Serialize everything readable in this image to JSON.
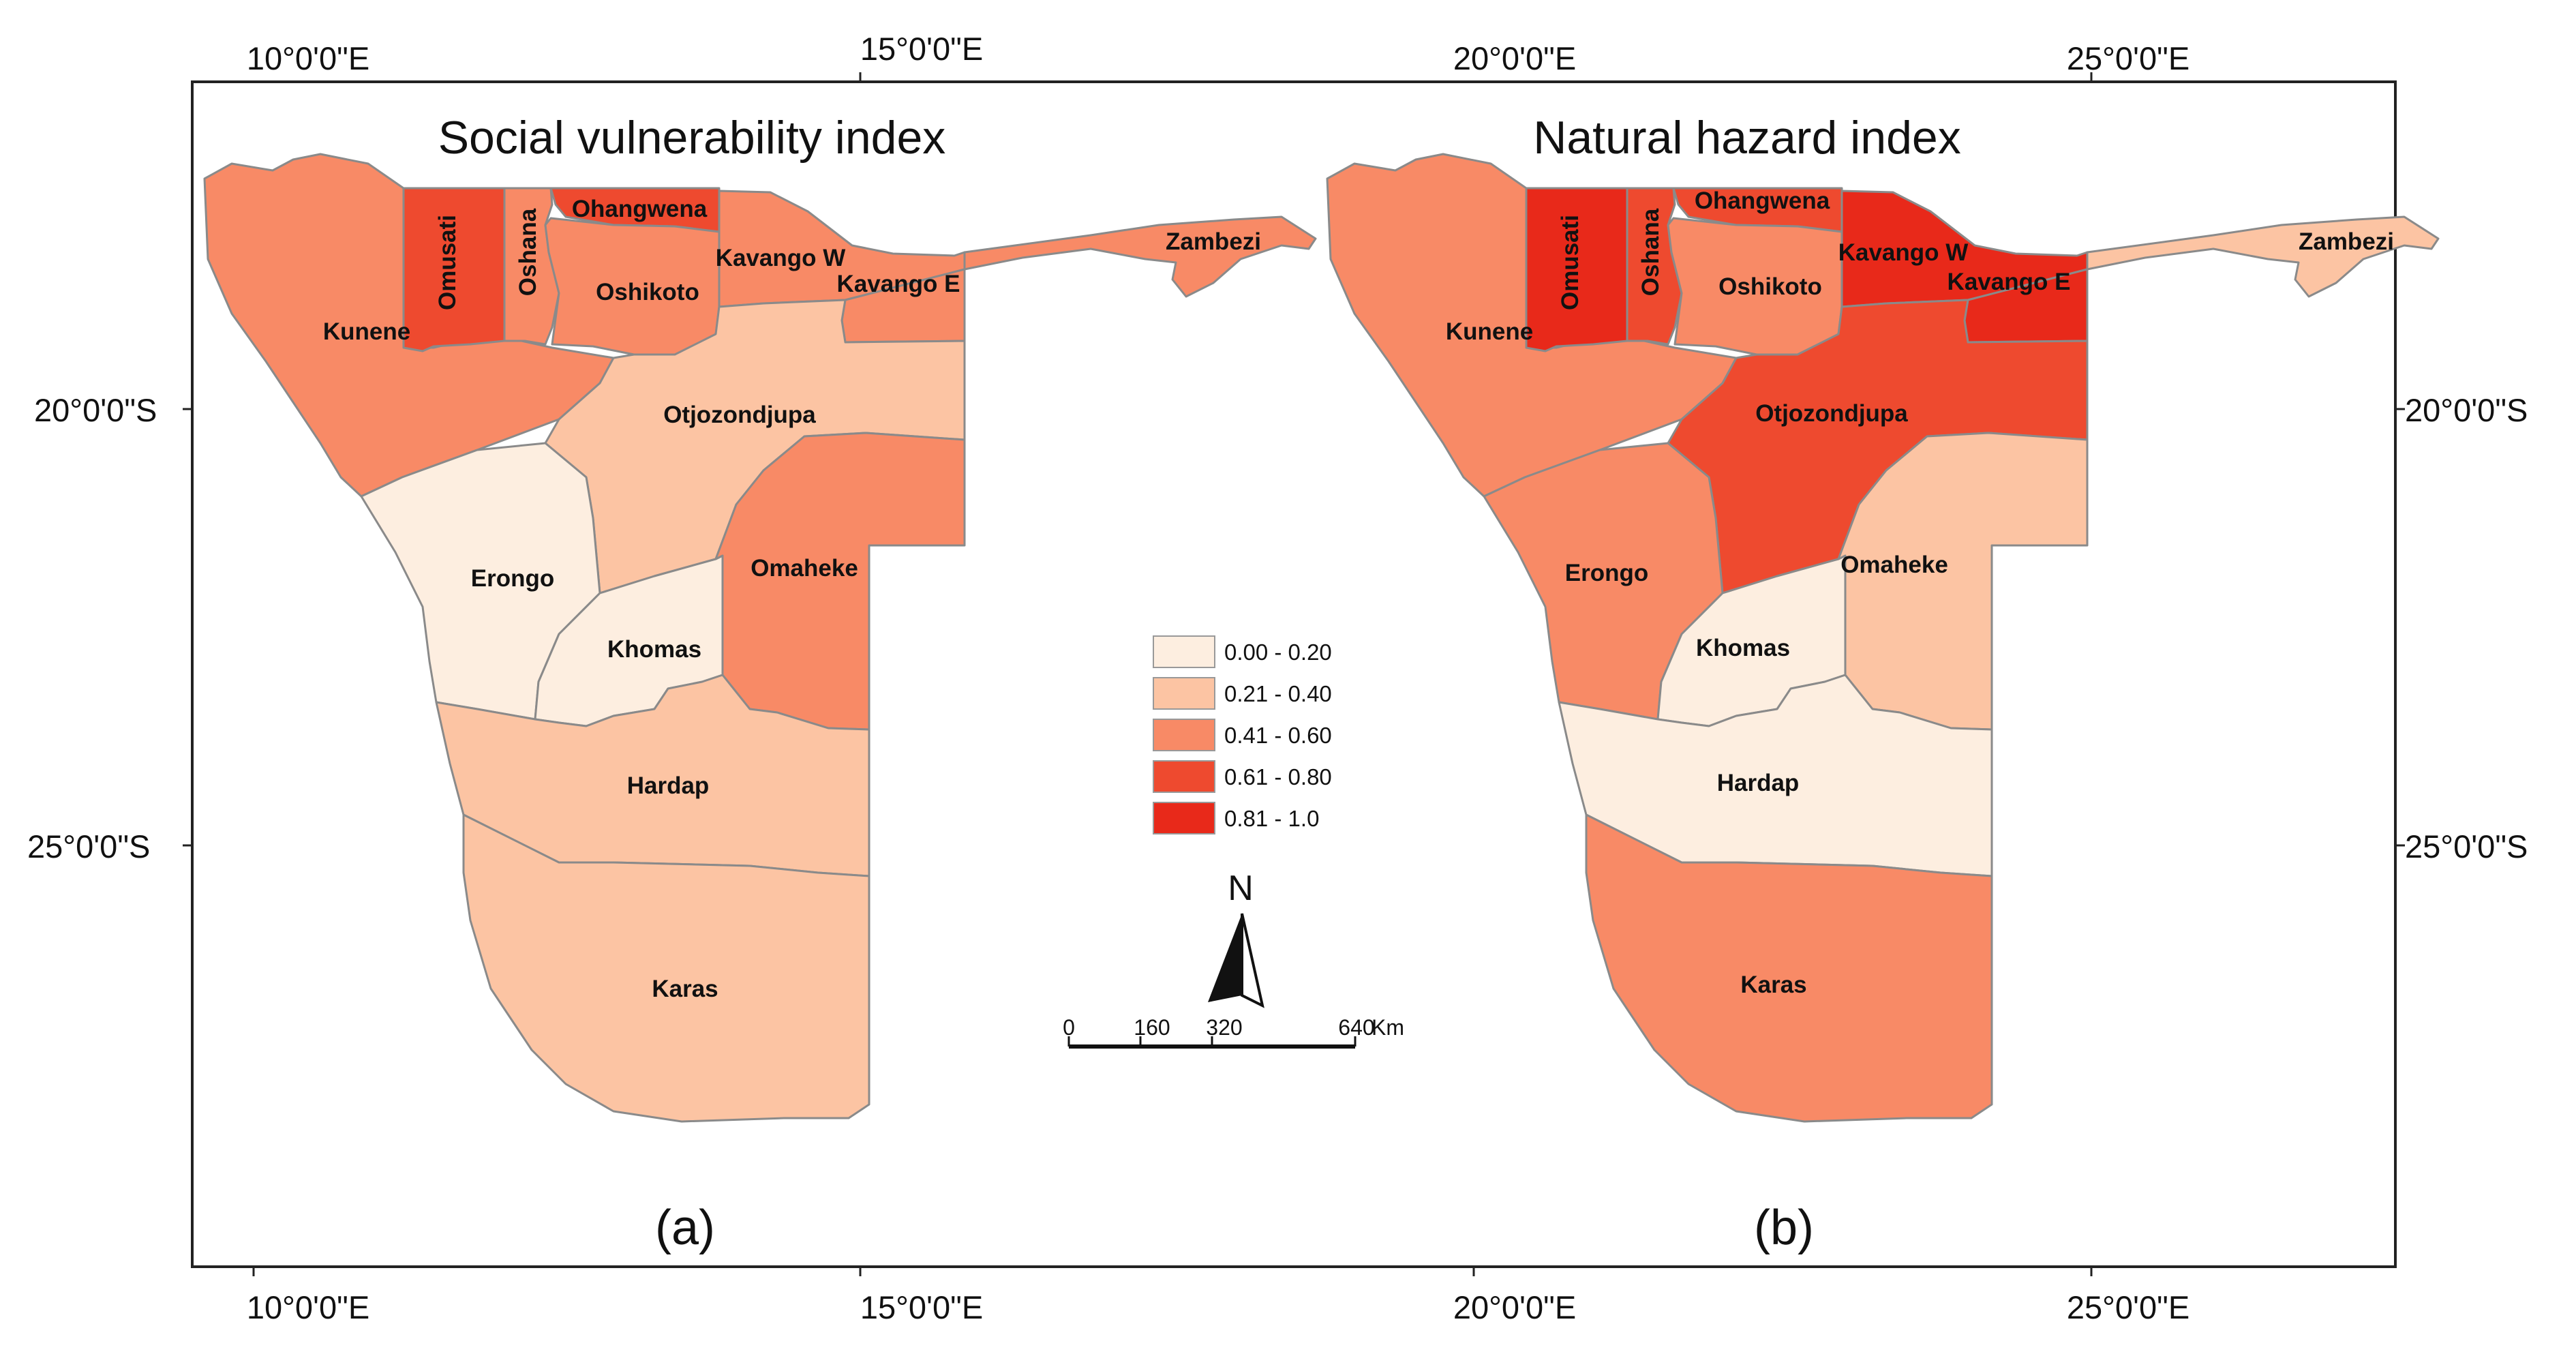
{
  "graticule": {
    "top_lon": [
      "10°0'0\"E",
      "15°0'0\"E",
      "20°0'0\"E",
      "25°0'0\"E"
    ],
    "bottom_lon": [
      "10°0'0\"E",
      "15°0'0\"E",
      "20°0'0\"E",
      "25°0'0\"E"
    ],
    "left_lat": [
      "20°0'0\"S",
      "25°0'0\"S"
    ],
    "right_lat": [
      "20°0'0\"S",
      "25°0'0\"S"
    ]
  },
  "maps": [
    {
      "title": "Social vulnerability index",
      "panel": "(a)",
      "regions": {
        "kunene": "Kunene",
        "omusati": "Omusati",
        "oshana": "Oshana",
        "ohangwena": "Ohangwena",
        "oshikoto": "Oshikoto",
        "kavango_w": "Kavango W",
        "kavango_e": "Kavango E",
        "zambezi": "Zambezi",
        "otjozondjupa": "Otjozondjupa",
        "erongo": "Erongo",
        "khomas": "Khomas",
        "omaheke": "Omaheke",
        "hardap": "Hardap",
        "karas": "Karas"
      },
      "region_class": {
        "kunene": 3,
        "omusati": 4,
        "oshana": 3,
        "ohangwena": 4,
        "oshikoto": 3,
        "kavango_w": 3,
        "kavango_e": 3,
        "zambezi": 3,
        "otjozondjupa": 2,
        "erongo": 1,
        "khomas": 1,
        "omaheke": 3,
        "hardap": 2,
        "karas": 2
      }
    },
    {
      "title": "Natural hazard index",
      "panel": "(b)",
      "regions": {
        "kunene": "Kunene",
        "omusati": "Omusati",
        "oshana": "Oshana",
        "ohangwena": "Ohangwena",
        "oshikoto": "Oshikoto",
        "kavango_w": "Kavango W",
        "kavango_e": "Kavango E",
        "zambezi": "Zambezi",
        "otjozondjupa": "Otjozondjupa",
        "erongo": "Erongo",
        "khomas": "Khomas",
        "omaheke": "Omaheke",
        "hardap": "Hardap",
        "karas": "Karas"
      },
      "region_class": {
        "kunene": 3,
        "omusati": 5,
        "oshana": 4,
        "ohangwena": 4,
        "oshikoto": 3,
        "kavango_w": 5,
        "kavango_e": 5,
        "zambezi": 2,
        "otjozondjupa": 4,
        "erongo": 3,
        "khomas": 1,
        "omaheke": 2,
        "hardap": 1,
        "karas": 3
      }
    }
  ],
  "legend": [
    {
      "label": "0.00 - 0.20",
      "color": "#fdeee0"
    },
    {
      "label": "0.21 - 0.40",
      "color": "#fcc4a3"
    },
    {
      "label": "0.41 - 0.60",
      "color": "#f88a66"
    },
    {
      "label": "0.61 - 0.80",
      "color": "#ee4a2f"
    },
    {
      "label": "0.81 - 1.0",
      "color": "#e8291a"
    }
  ],
  "north_arrow": {
    "label": "N",
    "icon": "north-arrow-icon"
  },
  "scale_bar": {
    "ticks": [
      "0",
      "160",
      "320",
      "640"
    ],
    "unit": "Km"
  }
}
